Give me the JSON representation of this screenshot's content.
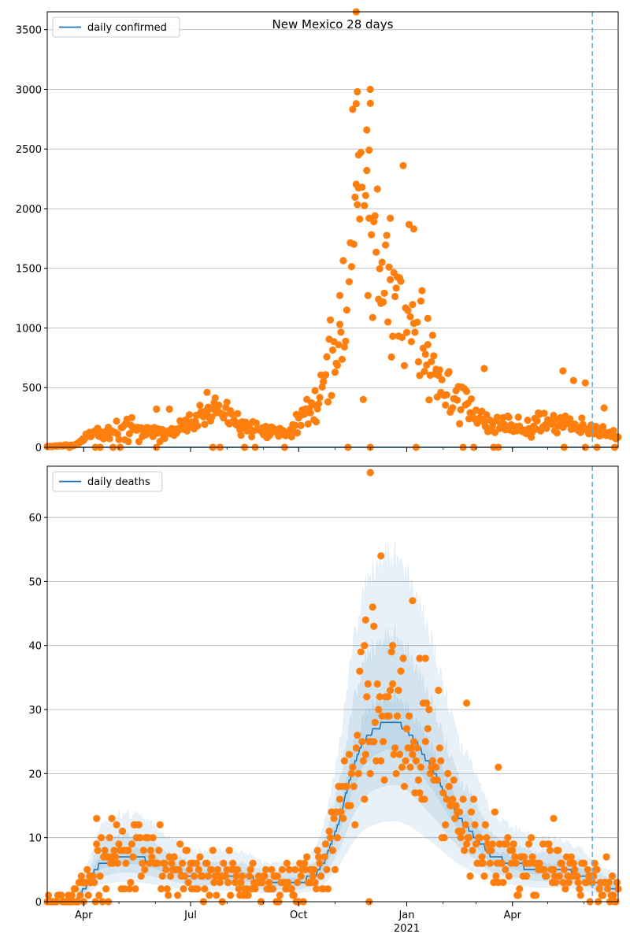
{
  "figure": {
    "title": "New Mexico 28 days"
  },
  "x_axis": {
    "ticks": [
      {
        "label": "Apr",
        "date": "2020-04-01"
      },
      {
        "label": "Jul",
        "date": "2020-07-01"
      },
      {
        "label": "Oct",
        "date": "2020-10-01"
      },
      {
        "label": "Jan",
        "date": "2021-01-01"
      },
      {
        "label": "Apr",
        "date": "2021-04-01"
      }
    ],
    "year_label": "2021",
    "range": [
      "2020-03-01",
      "2021-06-30"
    ]
  },
  "forecast_line_date": "2021-06-08",
  "colors": {
    "line": "#1f77b4",
    "points": "#ff7f0e",
    "band": "#1f77b4",
    "forecast": "#6baed6",
    "grid": "#b0b0b0"
  },
  "chart_data": [
    {
      "type": "line",
      "title": "New Mexico 28 days",
      "legend": [
        "daily confirmed"
      ],
      "legend_position": "upper-left",
      "grid": "y-only",
      "ylim": [
        0,
        3650
      ],
      "yticks": [
        0,
        500,
        1000,
        1500,
        2000,
        2500,
        3000,
        3500
      ],
      "series": [
        {
          "name": "daily confirmed",
          "kind": "line",
          "points": [
            [
              "2020-03-01",
              0
            ],
            [
              "2021-06-30",
              0
            ]
          ]
        }
      ],
      "scatter_keypoints": [
        [
          "2020-03-01",
          5
        ],
        [
          "2020-03-25",
          20
        ],
        [
          "2020-04-05",
          100
        ],
        [
          "2020-04-20",
          130
        ],
        [
          "2020-05-05",
          170
        ],
        [
          "2020-05-25",
          150
        ],
        [
          "2020-06-10",
          120
        ],
        [
          "2020-06-25",
          160
        ],
        [
          "2020-07-10",
          250
        ],
        [
          "2020-07-25",
          300
        ],
        [
          "2020-08-05",
          240
        ],
        [
          "2020-08-20",
          150
        ],
        [
          "2020-09-05",
          130
        ],
        [
          "2020-09-20",
          110
        ],
        [
          "2020-10-01",
          180
        ],
        [
          "2020-10-10",
          300
        ],
        [
          "2020-10-20",
          500
        ],
        [
          "2020-10-30",
          800
        ],
        [
          "2020-11-08",
          1150
        ],
        [
          "2020-11-16",
          1600
        ],
        [
          "2020-11-21",
          2300
        ],
        [
          "2020-11-27",
          1950
        ],
        [
          "2020-12-05",
          1500
        ],
        [
          "2020-12-15",
          1300
        ],
        [
          "2020-12-25",
          1200
        ],
        [
          "2021-01-05",
          1150
        ],
        [
          "2021-01-15",
          850
        ],
        [
          "2021-01-25",
          650
        ],
        [
          "2021-02-05",
          450
        ],
        [
          "2021-02-20",
          350
        ],
        [
          "2021-03-05",
          250
        ],
        [
          "2021-03-20",
          200
        ],
        [
          "2021-04-10",
          180
        ],
        [
          "2021-05-05",
          200
        ],
        [
          "2021-05-25",
          170
        ],
        [
          "2021-06-10",
          130
        ],
        [
          "2021-06-30",
          110
        ]
      ],
      "outliers": [
        [
          "2020-11-19",
          3650
        ],
        [
          "2020-11-20",
          2980
        ],
        [
          "2020-11-19",
          2880
        ],
        [
          "2020-12-01",
          3000
        ],
        [
          "2020-11-21",
          2450
        ],
        [
          "2020-11-28",
          2320
        ],
        [
          "2020-11-30",
          1920
        ],
        [
          "2020-12-18",
          1920
        ],
        [
          "2021-01-07",
          1830
        ],
        [
          "2020-12-26",
          1420
        ],
        [
          "2020-11-05",
          1030
        ],
        [
          "2021-01-19",
          1080
        ],
        [
          "2021-03-08",
          660
        ],
        [
          "2021-05-14",
          640
        ],
        [
          "2021-05-23",
          560
        ],
        [
          "2021-06-02",
          540
        ],
        [
          "2021-06-18",
          330
        ],
        [
          "2020-06-13",
          320
        ],
        [
          "2020-07-15",
          460
        ],
        [
          "2020-06-02",
          320
        ],
        [
          "2020-12-01",
          0
        ],
        [
          "2021-05-15",
          0
        ],
        [
          "2021-06-12",
          0
        ],
        [
          "2021-06-27",
          0
        ],
        [
          "2020-06-02",
          0
        ],
        [
          "2020-07-20",
          0
        ]
      ]
    },
    {
      "type": "line",
      "legend": [
        "daily deaths"
      ],
      "legend_position": "upper-left",
      "grid": "y-only",
      "ylim": [
        0,
        68
      ],
      "yticks": [
        0,
        10,
        20,
        30,
        40,
        50,
        60
      ],
      "series": [
        {
          "name": "daily deaths",
          "kind": "line",
          "points": [
            [
              "2020-03-01",
              0
            ],
            [
              "2020-03-25",
              0
            ],
            [
              "2020-04-05",
              3
            ],
            [
              "2020-04-15",
              6
            ],
            [
              "2020-05-01",
              7
            ],
            [
              "2020-05-15",
              7
            ],
            [
              "2020-06-01",
              6
            ],
            [
              "2020-06-15",
              5
            ],
            [
              "2020-07-01",
              4
            ],
            [
              "2020-07-15",
              4
            ],
            [
              "2020-08-01",
              4
            ],
            [
              "2020-08-15",
              4
            ],
            [
              "2020-09-01",
              3
            ],
            [
              "2020-09-15",
              3
            ],
            [
              "2020-10-01",
              3
            ],
            [
              "2020-10-15",
              4
            ],
            [
              "2020-10-25",
              7
            ],
            [
              "2020-11-05",
              13
            ],
            [
              "2020-11-15",
              20
            ],
            [
              "2020-11-25",
              25
            ],
            [
              "2020-12-05",
              27
            ],
            [
              "2020-12-15",
              28
            ],
            [
              "2020-12-25",
              28
            ],
            [
              "2021-01-05",
              26
            ],
            [
              "2021-01-15",
              23
            ],
            [
              "2021-01-25",
              20
            ],
            [
              "2021-02-05",
              16
            ],
            [
              "2021-02-15",
              13
            ],
            [
              "2021-03-01",
              10
            ],
            [
              "2021-03-15",
              7
            ],
            [
              "2021-04-01",
              6
            ],
            [
              "2021-04-20",
              5
            ],
            [
              "2021-05-10",
              5
            ],
            [
              "2021-06-01",
              4
            ],
            [
              "2021-06-10",
              3
            ],
            [
              "2021-06-30",
              2
            ]
          ]
        }
      ],
      "band_multipliers": [
        [
          0.45,
          1.9
        ],
        [
          0.65,
          1.45
        ],
        [
          0.85,
          1.12
        ]
      ],
      "scatter_keypoints": [
        [
          "2020-03-01",
          0
        ],
        [
          "2020-03-25",
          0
        ],
        [
          "2020-04-05",
          3
        ],
        [
          "2020-04-15",
          6
        ],
        [
          "2020-05-01",
          7
        ],
        [
          "2020-05-15",
          7
        ],
        [
          "2020-06-01",
          6
        ],
        [
          "2020-06-15",
          5
        ],
        [
          "2020-07-01",
          4
        ],
        [
          "2020-07-15",
          4
        ],
        [
          "2020-08-01",
          4
        ],
        [
          "2020-08-15",
          4
        ],
        [
          "2020-09-01",
          3
        ],
        [
          "2020-09-15",
          3
        ],
        [
          "2020-10-01",
          3
        ],
        [
          "2020-10-15",
          4
        ],
        [
          "2020-10-25",
          7
        ],
        [
          "2020-11-05",
          13
        ],
        [
          "2020-11-15",
          20
        ],
        [
          "2020-11-25",
          25
        ],
        [
          "2020-12-05",
          27
        ],
        [
          "2020-12-15",
          28
        ],
        [
          "2020-12-25",
          28
        ],
        [
          "2021-01-05",
          26
        ],
        [
          "2021-01-15",
          23
        ],
        [
          "2021-01-25",
          20
        ],
        [
          "2021-02-05",
          16
        ],
        [
          "2021-02-15",
          13
        ],
        [
          "2021-03-01",
          10
        ],
        [
          "2021-03-15",
          7
        ],
        [
          "2021-04-01",
          6
        ],
        [
          "2021-04-20",
          5
        ],
        [
          "2021-05-10",
          5
        ],
        [
          "2021-06-01",
          4
        ],
        [
          "2021-06-10",
          3
        ],
        [
          "2021-06-30",
          2
        ]
      ],
      "outliers": [
        [
          "2020-12-01",
          67
        ],
        [
          "2020-12-10",
          54
        ],
        [
          "2021-01-06",
          47
        ],
        [
          "2020-11-27",
          44
        ],
        [
          "2020-12-04",
          43
        ],
        [
          "2020-12-20",
          40
        ],
        [
          "2020-11-30",
          0
        ],
        [
          "2021-02-21",
          31
        ],
        [
          "2021-01-12",
          38
        ],
        [
          "2021-01-17",
          38
        ],
        [
          "2020-11-26",
          40
        ],
        [
          "2021-03-20",
          21
        ],
        [
          "2021-05-06",
          13
        ],
        [
          "2020-04-12",
          13
        ],
        [
          "2020-04-25",
          13
        ]
      ]
    }
  ]
}
